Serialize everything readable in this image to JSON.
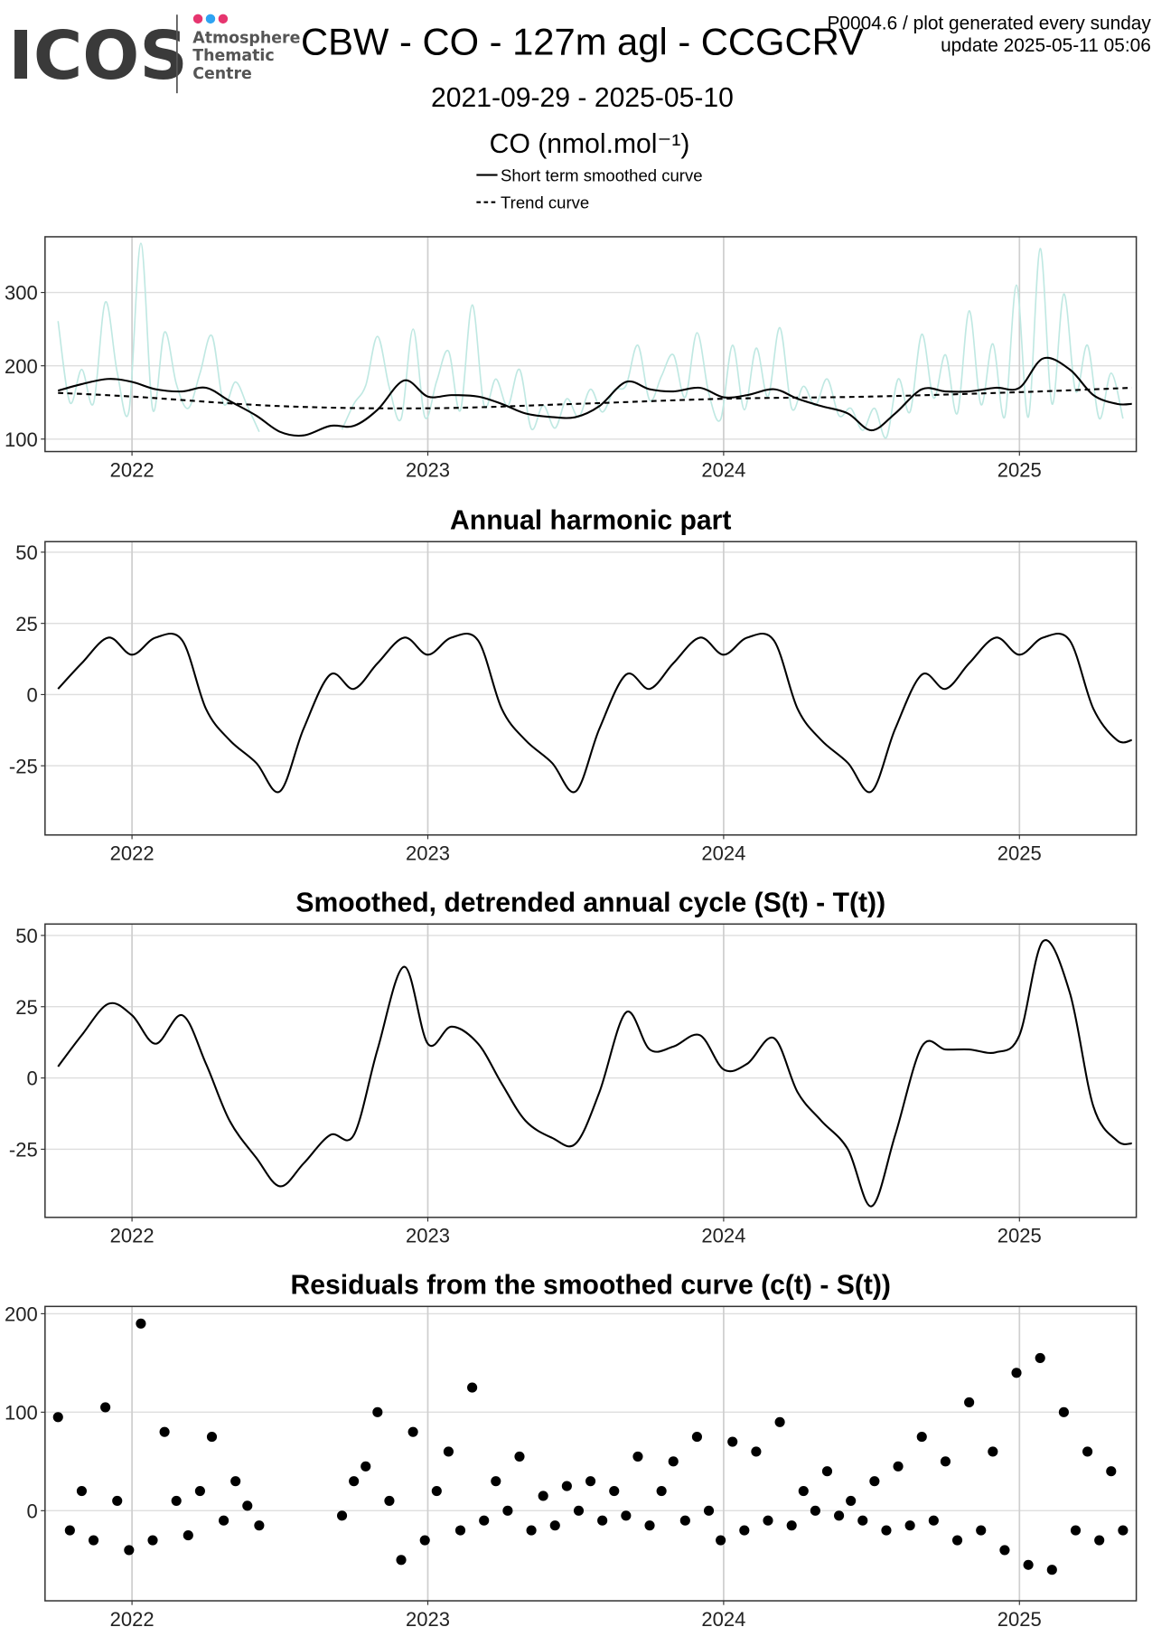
{
  "header": {
    "logo": "ICOS",
    "org": [
      "Atmosphere",
      "Thematic",
      "Centre"
    ],
    "plot_note": "P0004.6 / plot generated every sunday",
    "update": "update  2025-05-11 05:06"
  },
  "chart_data": [
    {
      "type": "line",
      "title": "CBW - CO - 127m agl - CCGCRV",
      "subtitle": "2021-09-29 - 2025-05-10",
      "ylabel": "CO (nmol.mol⁻¹)",
      "legend": "top",
      "grid": true,
      "xlim": [
        2021.706,
        2025.395
      ],
      "xticks": [
        2022,
        2023,
        2024,
        2025
      ],
      "ylim": [
        83,
        376
      ],
      "yticks": [
        100,
        200,
        300
      ],
      "series": [
        {
          "color": "#bfe8e2",
          "x": [
            2021.75,
            2021.79,
            2021.83,
            2021.87,
            2021.91,
            2021.95,
            2021.99,
            2022.03,
            2022.07,
            2022.11,
            2022.15,
            2022.19,
            2022.23,
            2022.27,
            2022.31,
            2022.35,
            2022.39,
            2022.43,
            2022.47,
            2022.51,
            2022.55,
            2022.59,
            2022.63,
            2022.67,
            2022.71,
            2022.75,
            2022.79,
            2022.83,
            2022.87,
            2022.91,
            2022.95,
            2022.99,
            2023.03,
            2023.07,
            2023.11,
            2023.15,
            2023.19,
            2023.23,
            2023.27,
            2023.31,
            2023.35,
            2023.39,
            2023.43,
            2023.47,
            2023.51,
            2023.55,
            2023.59,
            2023.63,
            2023.67,
            2023.71,
            2023.75,
            2023.79,
            2023.83,
            2023.87,
            2023.91,
            2023.95,
            2023.99,
            2024.03,
            2024.07,
            2024.11,
            2024.15,
            2024.19,
            2024.23,
            2024.27,
            2024.31,
            2024.35,
            2024.39,
            2024.43,
            2024.47,
            2024.51,
            2024.55,
            2024.59,
            2024.63,
            2024.67,
            2024.71,
            2024.75,
            2024.79,
            2024.83,
            2024.87,
            2024.91,
            2024.95,
            2024.99,
            2025.03,
            2025.07,
            2025.11,
            2025.15,
            2025.19,
            2025.23,
            2025.27,
            2025.31,
            2025.35
          ],
          "values": [
            261,
            150,
            195,
            149,
            287,
            191,
            139,
            367,
            140,
            246,
            175,
            142,
            190,
            241,
            148,
            178,
            145,
            110,
            null,
            null,
            null,
            null,
            null,
            null,
            113,
            148,
            173,
            240,
            170,
            128,
            250,
            130,
            179,
            220,
            139,
            283,
            146,
            182,
            145,
            195,
            114,
            146,
            115,
            155,
            130,
            168,
            137,
            167,
            173,
            228,
            153,
            186,
            215,
            157,
            245,
            162,
            127,
            228,
            140,
            224,
            158,
            252,
            142,
            172,
            146,
            182,
            132,
            142,
            112,
            142,
            102,
            182,
            137,
            243,
            156,
            215,
            135,
            275,
            147,
            230,
            130,
            310,
            130,
            360,
            148,
            298,
            165,
            228,
            128,
            190,
            128
          ]
        },
        {
          "name": "Short term smoothed curve",
          "color": "#000000",
          "x": [
            2021.75,
            2021.83,
            2021.92,
            2022.0,
            2022.08,
            2022.17,
            2022.25,
            2022.33,
            2022.42,
            2022.5,
            2022.58,
            2022.67,
            2022.75,
            2022.83,
            2022.92,
            2023.0,
            2023.08,
            2023.17,
            2023.25,
            2023.33,
            2023.42,
            2023.5,
            2023.58,
            2023.67,
            2023.75,
            2023.83,
            2023.92,
            2024.0,
            2024.08,
            2024.17,
            2024.25,
            2024.33,
            2024.42,
            2024.5,
            2024.58,
            2024.67,
            2024.75,
            2024.83,
            2024.92,
            2025.0,
            2025.08,
            2025.17,
            2025.25,
            2025.33,
            2025.38
          ],
          "values": [
            166,
            175,
            182,
            178,
            168,
            165,
            170,
            152,
            132,
            110,
            105,
            118,
            118,
            140,
            180,
            158,
            160,
            158,
            148,
            135,
            130,
            130,
            145,
            178,
            168,
            165,
            170,
            157,
            160,
            168,
            155,
            145,
            135,
            112,
            135,
            168,
            165,
            165,
            170,
            170,
            210,
            195,
            160,
            148,
            148
          ]
        },
        {
          "name": "Trend curve",
          "color": "#000000",
          "dash": "dashed",
          "x": [
            2021.75,
            2022.0,
            2022.5,
            2023.0,
            2023.5,
            2024.0,
            2024.5,
            2025.0,
            2025.38
          ],
          "values": [
            163,
            158,
            145,
            142,
            148,
            155,
            158,
            164,
            170
          ]
        }
      ]
    },
    {
      "type": "line",
      "title": "Annual harmonic part",
      "grid": true,
      "xlim": [
        2021.706,
        2025.395
      ],
      "xticks": [
        2022,
        2023,
        2024,
        2025
      ],
      "ylim": [
        -49.3,
        53.7
      ],
      "yticks": [
        -25,
        0,
        25,
        50
      ],
      "series": [
        {
          "color": "#000000",
          "x": [
            2021.75,
            2021.83,
            2021.92,
            2022.0,
            2022.08,
            2022.17,
            2022.25,
            2022.33,
            2022.42,
            2022.5,
            2022.58,
            2022.67,
            2022.75,
            2022.83,
            2022.92,
            2023.0,
            2023.08,
            2023.17,
            2023.25,
            2023.33,
            2023.42,
            2023.5,
            2023.58,
            2023.67,
            2023.75,
            2023.83,
            2023.92,
            2024.0,
            2024.08,
            2024.17,
            2024.25,
            2024.33,
            2024.42,
            2024.5,
            2024.58,
            2024.67,
            2024.75,
            2024.83,
            2024.92,
            2025.0,
            2025.08,
            2025.17,
            2025.25,
            2025.33,
            2025.38
          ],
          "values": [
            2,
            11,
            20,
            14,
            20,
            19,
            -5,
            -16,
            -24,
            -34,
            -12,
            7,
            2,
            11,
            20,
            14,
            20,
            19,
            -5,
            -16,
            -24,
            -34,
            -12,
            7,
            2,
            11,
            20,
            14,
            20,
            19,
            -5,
            -16,
            -24,
            -34,
            -12,
            7,
            2,
            11,
            20,
            14,
            20,
            19,
            -5,
            -16,
            -16
          ]
        }
      ]
    },
    {
      "type": "line",
      "title": "Smoothed, detrended annual cycle (S(t) - T(t))",
      "grid": true,
      "xlim": [
        2021.706,
        2025.395
      ],
      "xticks": [
        2022,
        2023,
        2024,
        2025
      ],
      "ylim": [
        -48.9,
        54
      ],
      "yticks": [
        -25,
        0,
        25,
        50
      ],
      "series": [
        {
          "color": "#000000",
          "x": [
            2021.75,
            2021.83,
            2021.92,
            2022.0,
            2022.08,
            2022.17,
            2022.25,
            2022.33,
            2022.42,
            2022.5,
            2022.58,
            2022.67,
            2022.75,
            2022.83,
            2022.92,
            2023.0,
            2023.08,
            2023.17,
            2023.25,
            2023.33,
            2023.42,
            2023.5,
            2023.58,
            2023.67,
            2023.75,
            2023.83,
            2023.92,
            2024.0,
            2024.08,
            2024.17,
            2024.25,
            2024.33,
            2024.42,
            2024.5,
            2024.58,
            2024.67,
            2024.75,
            2024.83,
            2024.92,
            2025.0,
            2025.08,
            2025.17,
            2025.25,
            2025.33,
            2025.38
          ],
          "values": [
            4,
            15,
            26,
            22,
            12,
            22,
            5,
            -15,
            -28,
            -38,
            -30,
            -20,
            -20,
            10,
            39,
            12,
            18,
            12,
            -2,
            -15,
            -21,
            -23,
            -5,
            23,
            10,
            11,
            15,
            3,
            5,
            14,
            -5,
            -15,
            -25,
            -45,
            -20,
            11,
            10,
            10,
            9,
            15,
            48,
            30,
            -10,
            -22,
            -23
          ]
        }
      ]
    },
    {
      "type": "scatter",
      "title": "Residuals from the smoothed curve (c(t) - S(t))",
      "grid": true,
      "color": "#000000",
      "xlim": [
        2021.706,
        2025.395
      ],
      "xticks": [
        2022,
        2023,
        2024,
        2025
      ],
      "ylim": [
        -91.5,
        207.4
      ],
      "yticks": [
        0,
        100,
        200
      ],
      "x": [
        2021.75,
        2021.79,
        2021.83,
        2021.87,
        2021.91,
        2021.95,
        2021.99,
        2022.03,
        2022.07,
        2022.11,
        2022.15,
        2022.19,
        2022.23,
        2022.27,
        2022.31,
        2022.35,
        2022.39,
        2022.43,
        2022.47,
        2022.51,
        2022.55,
        2022.59,
        2022.63,
        2022.67,
        2022.71,
        2022.75,
        2022.79,
        2022.83,
        2022.87,
        2022.91,
        2022.95,
        2022.99,
        2023.03,
        2023.07,
        2023.11,
        2023.15,
        2023.19,
        2023.23,
        2023.27,
        2023.31,
        2023.35,
        2023.39,
        2023.43,
        2023.47,
        2023.51,
        2023.55,
        2023.59,
        2023.63,
        2023.67,
        2023.71,
        2023.75,
        2023.79,
        2023.83,
        2023.87,
        2023.91,
        2023.95,
        2023.99,
        2024.03,
        2024.07,
        2024.11,
        2024.15,
        2024.19,
        2024.23,
        2024.27,
        2024.31,
        2024.35,
        2024.39,
        2024.43,
        2024.47,
        2024.51,
        2024.55,
        2024.59,
        2024.63,
        2024.67,
        2024.71,
        2024.75,
        2024.79,
        2024.83,
        2024.87,
        2024.91,
        2024.95,
        2024.99,
        2025.03,
        2025.07,
        2025.11,
        2025.15,
        2025.19,
        2025.23,
        2025.27,
        2025.31,
        2025.35
      ],
      "values": [
        95,
        -20,
        20,
        -30,
        105,
        10,
        -40,
        190,
        -30,
        80,
        10,
        -25,
        20,
        75,
        -10,
        30,
        5,
        -15,
        null,
        null,
        null,
        null,
        null,
        null,
        -5,
        30,
        45,
        100,
        10,
        -50,
        80,
        -30,
        20,
        60,
        -20,
        125,
        -10,
        30,
        0,
        55,
        -20,
        15,
        -15,
        25,
        0,
        30,
        -10,
        20,
        -5,
        55,
        -15,
        20,
        50,
        -10,
        75,
        0,
        -30,
        70,
        -20,
        60,
        -10,
        90,
        -15,
        20,
        0,
        40,
        -5,
        10,
        -10,
        30,
        -20,
        45,
        -15,
        75,
        -10,
        50,
        -30,
        110,
        -20,
        60,
        -40,
        140,
        -55,
        155,
        -60,
        100,
        -20,
        60,
        -30,
        40,
        -20
      ]
    }
  ]
}
